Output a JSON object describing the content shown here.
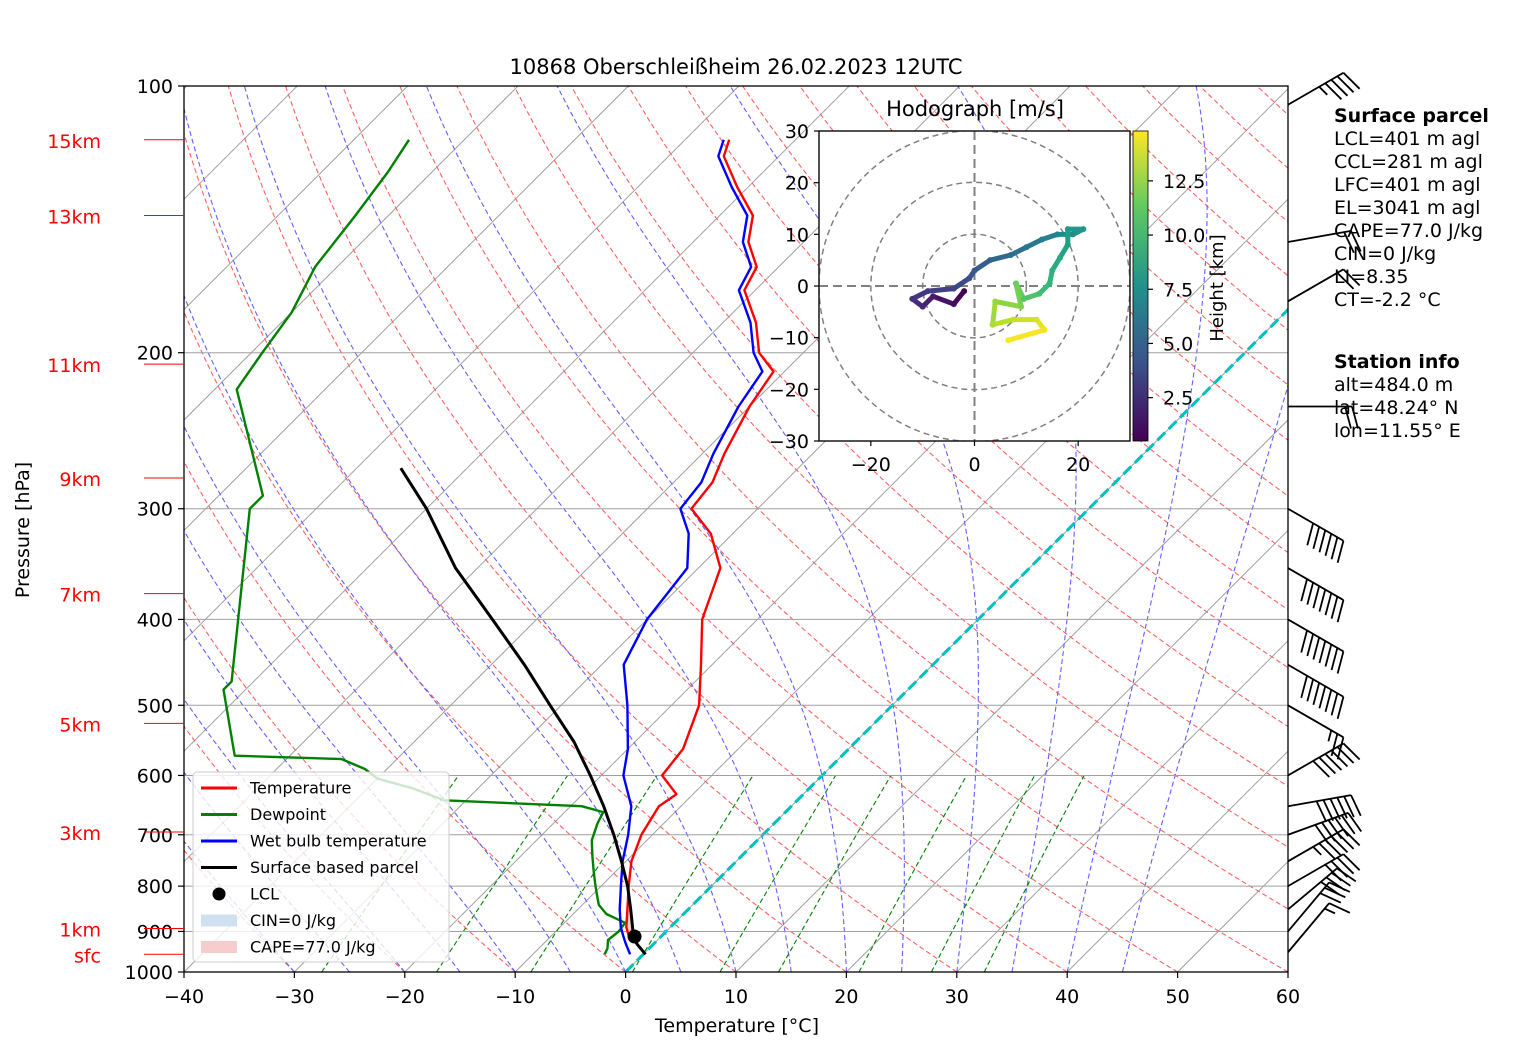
{
  "colors": {
    "temperature": "#ff0000",
    "dewpoint": "#008000",
    "wetbulb": "#0000ff",
    "parcel": "#000000",
    "isotherm": "#a0a0a0",
    "dry_adiabat": "#ff6060",
    "moist_adiabat": "#6060ff",
    "mixing_ratio": "#008000",
    "zero_isotherm": "#00bfbf",
    "height_label": "#ff0000",
    "cin_fill": "#cfe0f0",
    "cape_fill": "#f6cccc"
  },
  "chart_data": [
    {
      "type": "line",
      "title": "10868 Oberschleißheim 26.02.2023 12UTC",
      "xlabel": "Temperature [°C]",
      "ylabel": "Pressure [hPa]",
      "xlim": [
        -40,
        60
      ],
      "ylim": [
        1000,
        100
      ],
      "y_scale": "log",
      "skew": "skew-T, isotherms inclined 45°",
      "grid": true,
      "legend_position": "lower-left",
      "x_ticks": [
        "−40",
        "−30",
        "−20",
        "−10",
        "0",
        "10",
        "20",
        "30",
        "40",
        "50",
        "60"
      ],
      "y_ticks": [
        {
          "p": 100,
          "label": "100"
        },
        {
          "p": 200,
          "label": "200"
        },
        {
          "p": 300,
          "label": "300"
        },
        {
          "p": 400,
          "label": "400"
        },
        {
          "p": 500,
          "label": "500"
        },
        {
          "p": 600,
          "label": "600"
        },
        {
          "p": 700,
          "label": "700"
        },
        {
          "p": 800,
          "label": "800"
        },
        {
          "p": 900,
          "label": "900"
        },
        {
          "p": 1000,
          "label": "1000"
        }
      ],
      "height_labels": [
        {
          "p": 115,
          "label": "15km"
        },
        {
          "p": 140,
          "label": "13km"
        },
        {
          "p": 206,
          "label": "11km"
        },
        {
          "p": 277,
          "label": "9km"
        },
        {
          "p": 374,
          "label": "7km"
        },
        {
          "p": 524,
          "label": "5km"
        },
        {
          "p": 695,
          "label": "3km"
        },
        {
          "p": 893,
          "label": "1km"
        },
        {
          "p": 955,
          "label": "sfc"
        }
      ],
      "series": [
        {
          "name": "Temperature",
          "points": [
            [
              955,
              0.2
            ],
            [
              930,
              -1.5
            ],
            [
              910,
              -3
            ],
            [
              890,
              -4
            ],
            [
              850,
              -5.5
            ],
            [
              800,
              -7.5
            ],
            [
              750,
              -9.5
            ],
            [
              700,
              -11
            ],
            [
              650,
              -12
            ],
            [
              630,
              -11.5
            ],
            [
              600,
              -14.5
            ],
            [
              560,
              -15
            ],
            [
              500,
              -17.5
            ],
            [
              450,
              -21
            ],
            [
              400,
              -25
            ],
            [
              350,
              -28
            ],
            [
              320,
              -32
            ],
            [
              300,
              -36
            ],
            [
              280,
              -36.5
            ],
            [
              260,
              -38
            ],
            [
              230,
              -40
            ],
            [
              210,
              -41
            ],
            [
              200,
              -44
            ],
            [
              185,
              -47
            ],
            [
              170,
              -51
            ],
            [
              160,
              -52
            ],
            [
              150,
              -55
            ],
            [
              140,
              -57
            ],
            [
              130,
              -61
            ],
            [
              120,
              -65
            ],
            [
              115,
              -66
            ]
          ]
        },
        {
          "name": "Dewpoint",
          "points": [
            [
              955,
              -3.5
            ],
            [
              940,
              -3.8
            ],
            [
              920,
              -4.5
            ],
            [
              900,
              -4.3
            ],
            [
              880,
              -4.5
            ],
            [
              860,
              -7
            ],
            [
              840,
              -8.5
            ],
            [
              820,
              -9.5
            ],
            [
              800,
              -10.5
            ],
            [
              770,
              -12
            ],
            [
              740,
              -13.5
            ],
            [
              710,
              -15
            ],
            [
              680,
              -16
            ],
            [
              660,
              -16.5
            ],
            [
              650,
              -19
            ],
            [
              640,
              -32
            ],
            [
              620,
              -36
            ],
            [
              605,
              -40
            ],
            [
              590,
              -42
            ],
            [
              575,
              -45
            ],
            [
              570,
              -55
            ],
            [
              480,
              -62
            ],
            [
              470,
              -62
            ],
            [
              300,
              -76
            ],
            [
              290,
              -76
            ],
            [
              220,
              -88
            ],
            [
              200,
              -89
            ],
            [
              180,
              -90
            ],
            [
              160,
              -92
            ],
            [
              140,
              -93
            ],
            [
              125,
              -94
            ],
            [
              115,
              -95
            ]
          ]
        },
        {
          "name": "Wet bulb temperature",
          "points": [
            [
              955,
              -1.2
            ],
            [
              930,
              -2.5
            ],
            [
              910,
              -3.5
            ],
            [
              890,
              -4.5
            ],
            [
              850,
              -6.2
            ],
            [
              800,
              -8.2
            ],
            [
              750,
              -10.3
            ],
            [
              700,
              -12.2
            ],
            [
              650,
              -14.5
            ],
            [
              600,
              -18
            ],
            [
              560,
              -20
            ],
            [
              500,
              -24
            ],
            [
              450,
              -28
            ],
            [
              400,
              -30
            ],
            [
              350,
              -31
            ],
            [
              320,
              -34
            ],
            [
              300,
              -37
            ],
            [
              280,
              -37.5
            ],
            [
              260,
              -39
            ],
            [
              230,
              -41
            ],
            [
              210,
              -42
            ],
            [
              200,
              -44.5
            ],
            [
              185,
              -47.5
            ],
            [
              170,
              -51.5
            ],
            [
              160,
              -52.5
            ],
            [
              150,
              -55.5
            ],
            [
              140,
              -57.5
            ],
            [
              130,
              -61.5
            ],
            [
              120,
              -65.5
            ],
            [
              115,
              -66.5
            ]
          ]
        },
        {
          "name": "Surface based parcel",
          "points": [
            [
              955,
              0.2
            ],
            [
              930,
              -1.5
            ],
            [
              912,
              -2.4
            ],
            [
              900,
              -3.0
            ],
            [
              850,
              -5.2
            ],
            [
              800,
              -7.6
            ],
            [
              750,
              -10.4
            ],
            [
              700,
              -13.5
            ],
            [
              650,
              -17
            ],
            [
              600,
              -21
            ],
            [
              550,
              -25.5
            ],
            [
              500,
              -31
            ],
            [
              450,
              -37
            ],
            [
              400,
              -44
            ],
            [
              350,
              -52
            ],
            [
              300,
              -60
            ],
            [
              270,
              -66
            ]
          ]
        }
      ],
      "lcl": {
        "label": "LCL",
        "p": 912,
        "t": -2.4
      },
      "fills": [
        {
          "name": "CIN=0 J/kg"
        },
        {
          "name": "CAPE=77.0 J/kg"
        }
      ],
      "legend": [
        "Temperature",
        "Dewpoint",
        "Wet bulb temperature",
        "Surface based parcel",
        "LCL",
        "CIN=0 J/kg",
        "CAPE=77.0 J/kg"
      ],
      "wind_barbs": [
        {
          "p": 105,
          "speed_kt": 45,
          "dir_deg": 300
        },
        {
          "p": 118,
          "speed_kt": 0,
          "dir_deg": 0
        },
        {
          "p": 150,
          "speed_kt": 20,
          "dir_deg": 280
        },
        {
          "p": 175,
          "speed_kt": 20,
          "dir_deg": 300
        },
        {
          "p": 230,
          "speed_kt": 20,
          "dir_deg": 270
        },
        {
          "p": 300,
          "speed_kt": 60,
          "dir_deg": 240
        },
        {
          "p": 350,
          "speed_kt": 70,
          "dir_deg": 240
        },
        {
          "p": 400,
          "speed_kt": 70,
          "dir_deg": 240
        },
        {
          "p": 450,
          "speed_kt": 70,
          "dir_deg": 240
        },
        {
          "p": 500,
          "speed_kt": 25,
          "dir_deg": 240
        },
        {
          "p": 550,
          "speed_kt": 0,
          "dir_deg": 0
        },
        {
          "p": 600,
          "speed_kt": 60,
          "dir_deg": 300
        },
        {
          "p": 650,
          "speed_kt": 60,
          "dir_deg": 280
        },
        {
          "p": 700,
          "speed_kt": 60,
          "dir_deg": 290
        },
        {
          "p": 750,
          "speed_kt": 55,
          "dir_deg": 300
        },
        {
          "p": 800,
          "speed_kt": 40,
          "dir_deg": 300
        },
        {
          "p": 850,
          "speed_kt": 40,
          "dir_deg": 310
        },
        {
          "p": 900,
          "speed_kt": 30,
          "dir_deg": 320
        },
        {
          "p": 950,
          "speed_kt": 15,
          "dir_deg": 320
        }
      ]
    },
    {
      "type": "scatter",
      "title": "Hodograph [m/s]",
      "xlim": [
        -30,
        30
      ],
      "ylim": [
        -30,
        30
      ],
      "x_ticks": [
        "−20",
        "0",
        "20"
      ],
      "y_ticks": [
        "30",
        "20",
        "10",
        "0",
        "−10",
        "−20",
        "−30"
      ],
      "rings": [
        10,
        20,
        30
      ],
      "colorbar": {
        "label": "Height [km]",
        "ticks": [
          "2.5",
          "5.0",
          "7.5",
          "10.0",
          "12.5"
        ],
        "range": [
          0.5,
          14.8
        ],
        "colormap": "viridis"
      },
      "points": [
        {
          "h": 0.5,
          "u": -2.0,
          "v": -1.0
        },
        {
          "h": 1.0,
          "u": -4.0,
          "v": -3.5
        },
        {
          "h": 1.5,
          "u": -8.0,
          "v": -2.0
        },
        {
          "h": 2.0,
          "u": -10.0,
          "v": -4.0
        },
        {
          "h": 2.5,
          "u": -12.0,
          "v": -2.5
        },
        {
          "h": 3.0,
          "u": -9.0,
          "v": -1.0
        },
        {
          "h": 3.5,
          "u": -4.0,
          "v": -0.5
        },
        {
          "h": 4.0,
          "u": -1.0,
          "v": 1.5
        },
        {
          "h": 4.5,
          "u": 0.0,
          "v": 3.0
        },
        {
          "h": 5.0,
          "u": 3.0,
          "v": 5.0
        },
        {
          "h": 5.5,
          "u": 7.0,
          "v": 6.0
        },
        {
          "h": 6.0,
          "u": 10.0,
          "v": 7.5
        },
        {
          "h": 6.5,
          "u": 13.0,
          "v": 9.0
        },
        {
          "h": 7.0,
          "u": 16.0,
          "v": 10.0
        },
        {
          "h": 7.5,
          "u": 19.0,
          "v": 10.0
        },
        {
          "h": 8.0,
          "u": 21.0,
          "v": 11.0
        },
        {
          "h": 8.3,
          "u": 18.0,
          "v": 11.0
        },
        {
          "h": 8.6,
          "u": 18.0,
          "v": 8.0
        },
        {
          "h": 9.0,
          "u": 16.5,
          "v": 5.5
        },
        {
          "h": 9.5,
          "u": 15.0,
          "v": 3.0
        },
        {
          "h": 10.0,
          "u": 14.5,
          "v": 0.5
        },
        {
          "h": 10.5,
          "u": 12.5,
          "v": -1.5
        },
        {
          "h": 11.0,
          "u": 9.5,
          "v": -2.5
        },
        {
          "h": 11.5,
          "u": 8.0,
          "v": 0.5
        },
        {
          "h": 12.0,
          "u": 9.0,
          "v": -4.0
        },
        {
          "h": 12.5,
          "u": 4.0,
          "v": -3.0
        },
        {
          "h": 13.0,
          "u": 3.5,
          "v": -7.5
        },
        {
          "h": 13.5,
          "u": 7.5,
          "v": -6.5
        },
        {
          "h": 14.0,
          "u": 12.0,
          "v": -6.5
        },
        {
          "h": 14.5,
          "u": 13.5,
          "v": -8.5
        },
        {
          "h": 14.8,
          "u": 6.5,
          "v": -10.5
        }
      ]
    }
  ],
  "surface_parcel": {
    "title": "Surface parcel",
    "lines": [
      "LCL=401 m agl",
      "CCL=281 m agl",
      "LFC=401 m agl",
      "EL=3041 m agl",
      "CAPE=77.0 J/kg",
      "CIN=0 J/kg",
      "LI=8.35",
      "CT=-2.2 °C"
    ]
  },
  "station_info": {
    "title": "Station info",
    "lines": [
      "alt=484.0 m",
      "lat=48.24° N",
      "lon=11.55° E"
    ]
  }
}
